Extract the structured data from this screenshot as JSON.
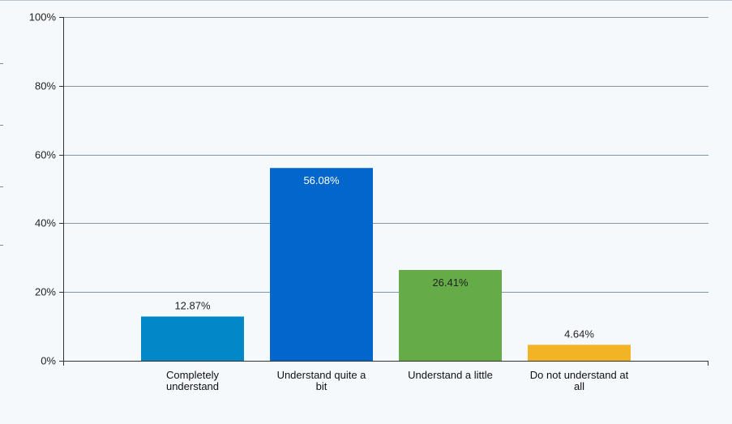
{
  "chart_data": {
    "type": "bar",
    "title": "",
    "xlabel": "",
    "ylabel": "",
    "categories": [
      [
        "Completely",
        "understand"
      ],
      [
        "Understand quite a",
        "bit"
      ],
      [
        "Understand a little"
      ],
      [
        "Do not understand at",
        "all"
      ]
    ],
    "values": [
      12.87,
      56.08,
      26.41,
      4.64
    ],
    "value_labels": [
      "12.87%",
      "56.08%",
      "26.41%",
      "4.64%"
    ],
    "bar_colors": [
      "#0287c8",
      "#0266cc",
      "#65ab47",
      "#f2b425"
    ],
    "value_label_colors": [
      "#222222",
      "#ffffff",
      "#222222",
      "#222222"
    ],
    "value_label_inside": [
      false,
      true,
      true,
      false
    ],
    "ylim": [
      0,
      100
    ],
    "yticks": [
      0,
      20,
      40,
      60,
      80,
      100
    ],
    "ytick_labels": [
      "0%",
      "20%",
      "40%",
      "60%",
      "80%",
      "100%"
    ],
    "grid": true,
    "grid_color": "#7f97a5",
    "legend": false
  }
}
